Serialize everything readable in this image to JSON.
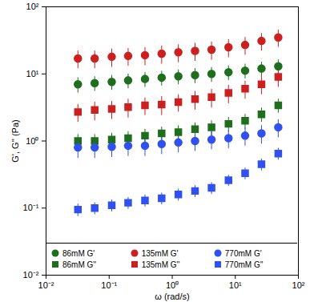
{
  "chart_data": {
    "type": "scatter",
    "x_label": "ω (rad/s)",
    "y_label": "G', G'' (Pa)",
    "log": true,
    "grid": false,
    "legend": "bottom",
    "x": [
      0.032,
      0.059,
      0.11,
      0.2,
      0.37,
      0.68,
      1.25,
      2.3,
      4.2,
      7.8,
      14.3,
      26,
      48
    ],
    "xlim": [
      0.01,
      100
    ],
    "xticks": [
      {
        "value": 0.01,
        "label": "10⁻²"
      },
      {
        "value": 0.1,
        "label": "10⁻¹"
      },
      {
        "value": 1,
        "label": "10⁰"
      },
      {
        "value": 10,
        "label": "10¹"
      },
      {
        "value": 100,
        "label": "10²"
      }
    ],
    "ylim": [
      0.01,
      100
    ],
    "yticks": [
      {
        "value": 0.01,
        "label": "10⁻²"
      },
      {
        "value": 0.1,
        "label": "10⁻¹"
      },
      {
        "value": 1,
        "label": "10⁰"
      },
      {
        "value": 10,
        "label": "10¹"
      },
      {
        "value": 100,
        "label": "10²"
      }
    ],
    "series": [
      {
        "name": "86mM G'",
        "color": "#1e6e1e",
        "marker": "circle",
        "values": [
          7,
          7.3,
          7.6,
          8,
          8.4,
          8.8,
          9.2,
          9.6,
          10,
          10.6,
          11.2,
          12,
          13
        ],
        "errors": [
          1.8,
          1.8,
          1.9,
          2,
          2.1,
          2.2,
          2.3,
          2.4,
          2.5,
          2.6,
          2.8,
          3,
          3.2
        ]
      },
      {
        "name": "86mM G''",
        "color": "#1e6e1e",
        "marker": "square",
        "values": [
          1,
          1,
          1.05,
          1.1,
          1.2,
          1.3,
          1.35,
          1.5,
          1.6,
          1.8,
          2,
          2.5,
          3.4
        ],
        "errors": [
          0.25,
          0.25,
          0.26,
          0.28,
          0.3,
          0.32,
          0.34,
          0.37,
          0.4,
          0.45,
          0.5,
          0.6,
          0.8
        ]
      },
      {
        "name": "135mM G'",
        "color": "#cc2020",
        "marker": "circle",
        "values": [
          17,
          17,
          18,
          18.5,
          19,
          20,
          21,
          22,
          23,
          25,
          27,
          31,
          35
        ],
        "errors": [
          5,
          5,
          5.5,
          5.5,
          5.7,
          6,
          6.3,
          6.6,
          7,
          7.5,
          8,
          9,
          10
        ]
      },
      {
        "name": "135mM G''",
        "color": "#cc2020",
        "marker": "square",
        "values": [
          2.7,
          2.9,
          3,
          3.2,
          3.4,
          3.5,
          3.8,
          4.2,
          4.5,
          5.2,
          6,
          7,
          9
        ],
        "errors": [
          0.8,
          0.9,
          0.9,
          1,
          1,
          1.1,
          1.1,
          1.3,
          1.4,
          1.6,
          1.8,
          2.1,
          2.7
        ]
      },
      {
        "name": "770mM G'",
        "color": "#3050f0",
        "marker": "circle",
        "values": [
          0.8,
          0.8,
          0.82,
          0.85,
          0.85,
          0.9,
          0.95,
          1,
          1.05,
          1.1,
          1.2,
          1.3,
          1.6
        ],
        "errors": [
          0.25,
          0.25,
          0.25,
          0.26,
          0.26,
          0.27,
          0.28,
          0.3,
          0.31,
          0.33,
          0.36,
          0.4,
          0.48
        ]
      },
      {
        "name": "770mM G''",
        "color": "#3050f0",
        "marker": "square",
        "values": [
          0.095,
          0.1,
          0.11,
          0.12,
          0.13,
          0.14,
          0.16,
          0.18,
          0.2,
          0.26,
          0.33,
          0.45,
          0.65
        ],
        "errors": [
          0.02,
          0.02,
          0.022,
          0.024,
          0.026,
          0.028,
          0.032,
          0.036,
          0.04,
          0.05,
          0.065,
          0.09,
          0.13
        ]
      }
    ]
  }
}
